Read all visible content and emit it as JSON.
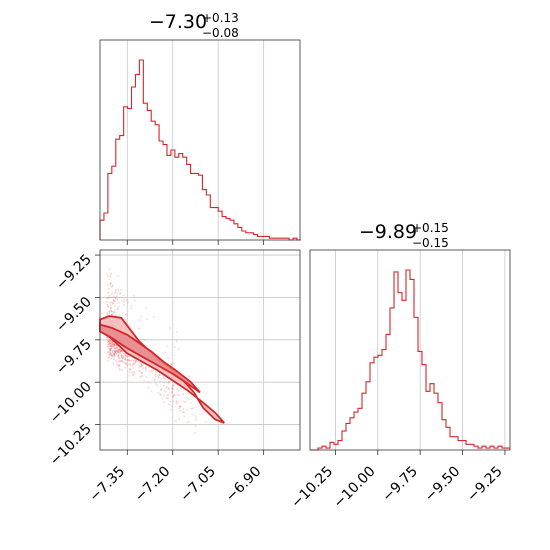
{
  "chart_data": [
    {
      "type": "histogram",
      "panel": "top-left marginal",
      "title": {
        "value": "−7.30",
        "plus": "+0.13",
        "minus": "−0.08"
      },
      "x_ticks": [
        "−7.35",
        "−7.20",
        "−7.05",
        "−6.90"
      ],
      "x_tick_values": [
        -7.35,
        -7.2,
        -7.05,
        -6.9
      ],
      "xlim": [
        -7.44,
        -6.78
      ],
      "bin_edges_start": -7.44,
      "bin_width": 0.013,
      "counts": [
        0.11,
        0.15,
        0.37,
        0.41,
        0.56,
        0.58,
        0.74,
        0.73,
        0.85,
        0.92,
        1.0,
        0.76,
        0.72,
        0.66,
        0.64,
        0.55,
        0.53,
        0.47,
        0.5,
        0.46,
        0.48,
        0.46,
        0.42,
        0.37,
        0.37,
        0.36,
        0.28,
        0.25,
        0.18,
        0.18,
        0.16,
        0.13,
        0.12,
        0.11,
        0.09,
        0.07,
        0.05,
        0.04,
        0.04,
        0.03,
        0.02,
        0.02,
        0.02,
        0.01,
        0.01,
        0.01,
        0.01,
        0.01,
        0.0,
        0.01,
        0.0
      ],
      "color": "#d62728",
      "grid": true
    },
    {
      "type": "histogram",
      "panel": "bottom-right marginal",
      "title": {
        "value": "−9.89",
        "plus": "+0.15",
        "minus": "−0.15"
      },
      "x_ticks": [
        "−10.25",
        "−10.00",
        "−9.75",
        "−9.50",
        "−9.25"
      ],
      "x_tick_values": [
        -10.25,
        -10.0,
        -9.75,
        -9.5,
        -9.25
      ],
      "xlim": [
        -10.4,
        -9.22
      ],
      "bin_edges_start": -10.4,
      "bin_width": 0.0236,
      "counts": [
        0.0,
        0.0,
        0.01,
        0.02,
        0.01,
        0.04,
        0.03,
        0.05,
        0.1,
        0.14,
        0.17,
        0.2,
        0.22,
        0.3,
        0.36,
        0.46,
        0.49,
        0.5,
        0.53,
        0.61,
        0.75,
        0.94,
        0.83,
        0.79,
        0.95,
        0.9,
        0.7,
        0.52,
        0.45,
        0.31,
        0.35,
        0.3,
        0.25,
        0.16,
        0.12,
        0.07,
        0.07,
        0.05,
        0.05,
        0.03,
        0.03,
        0.02,
        0.01,
        0.02,
        0.01,
        0.02,
        0.01,
        0.02,
        0.01,
        0.01
      ],
      "color": "#d62728",
      "grid": true
    },
    {
      "type": "scatter-contour",
      "panel": "bottom-left joint",
      "x_ticks": [
        "−7.35",
        "−7.20",
        "−7.05",
        "−6.90"
      ],
      "x_tick_values": [
        -7.35,
        -7.2,
        -7.05,
        -6.9
      ],
      "y_ticks": [
        "−9.25",
        "−9.50",
        "−9.75",
        "−10.00",
        "−10.25"
      ],
      "y_tick_values": [
        -9.25,
        -9.5,
        -9.75,
        -10.0,
        -10.25
      ],
      "xlim": [
        -7.44,
        -6.78
      ],
      "ylim": [
        -10.4,
        -9.22
      ],
      "contour_outer": [
        [
          -7.44,
          -9.7
        ],
        [
          -7.41,
          -9.73
        ],
        [
          -7.38,
          -9.78
        ],
        [
          -7.35,
          -9.83
        ],
        [
          -7.3,
          -9.88
        ],
        [
          -7.25,
          -9.93
        ],
        [
          -7.2,
          -9.99
        ],
        [
          -7.15,
          -10.05
        ],
        [
          -7.1,
          -10.12
        ],
        [
          -7.06,
          -10.18
        ],
        [
          -7.03,
          -10.24
        ],
        [
          -7.06,
          -10.22
        ],
        [
          -7.1,
          -10.15
        ],
        [
          -7.13,
          -10.06
        ],
        [
          -7.17,
          -9.98
        ],
        [
          -7.2,
          -9.93
        ],
        [
          -7.24,
          -9.88
        ],
        [
          -7.28,
          -9.81
        ],
        [
          -7.31,
          -9.76
        ],
        [
          -7.34,
          -9.69
        ],
        [
          -7.37,
          -9.62
        ],
        [
          -7.41,
          -9.61
        ],
        [
          -7.44,
          -9.63
        ]
      ],
      "contour_inner": [
        [
          -7.44,
          -9.7
        ],
        [
          -7.4,
          -9.74
        ],
        [
          -7.35,
          -9.8
        ],
        [
          -7.3,
          -9.85
        ],
        [
          -7.25,
          -9.9
        ],
        [
          -7.2,
          -9.95
        ],
        [
          -7.15,
          -10.01
        ],
        [
          -7.11,
          -10.06
        ],
        [
          -7.14,
          -10.0
        ],
        [
          -7.19,
          -9.93
        ],
        [
          -7.23,
          -9.88
        ],
        [
          -7.27,
          -9.82
        ],
        [
          -7.31,
          -9.77
        ],
        [
          -7.35,
          -9.72
        ],
        [
          -7.4,
          -9.68
        ],
        [
          -7.44,
          -9.66
        ]
      ],
      "color": "#d62728",
      "grid": true
    }
  ]
}
